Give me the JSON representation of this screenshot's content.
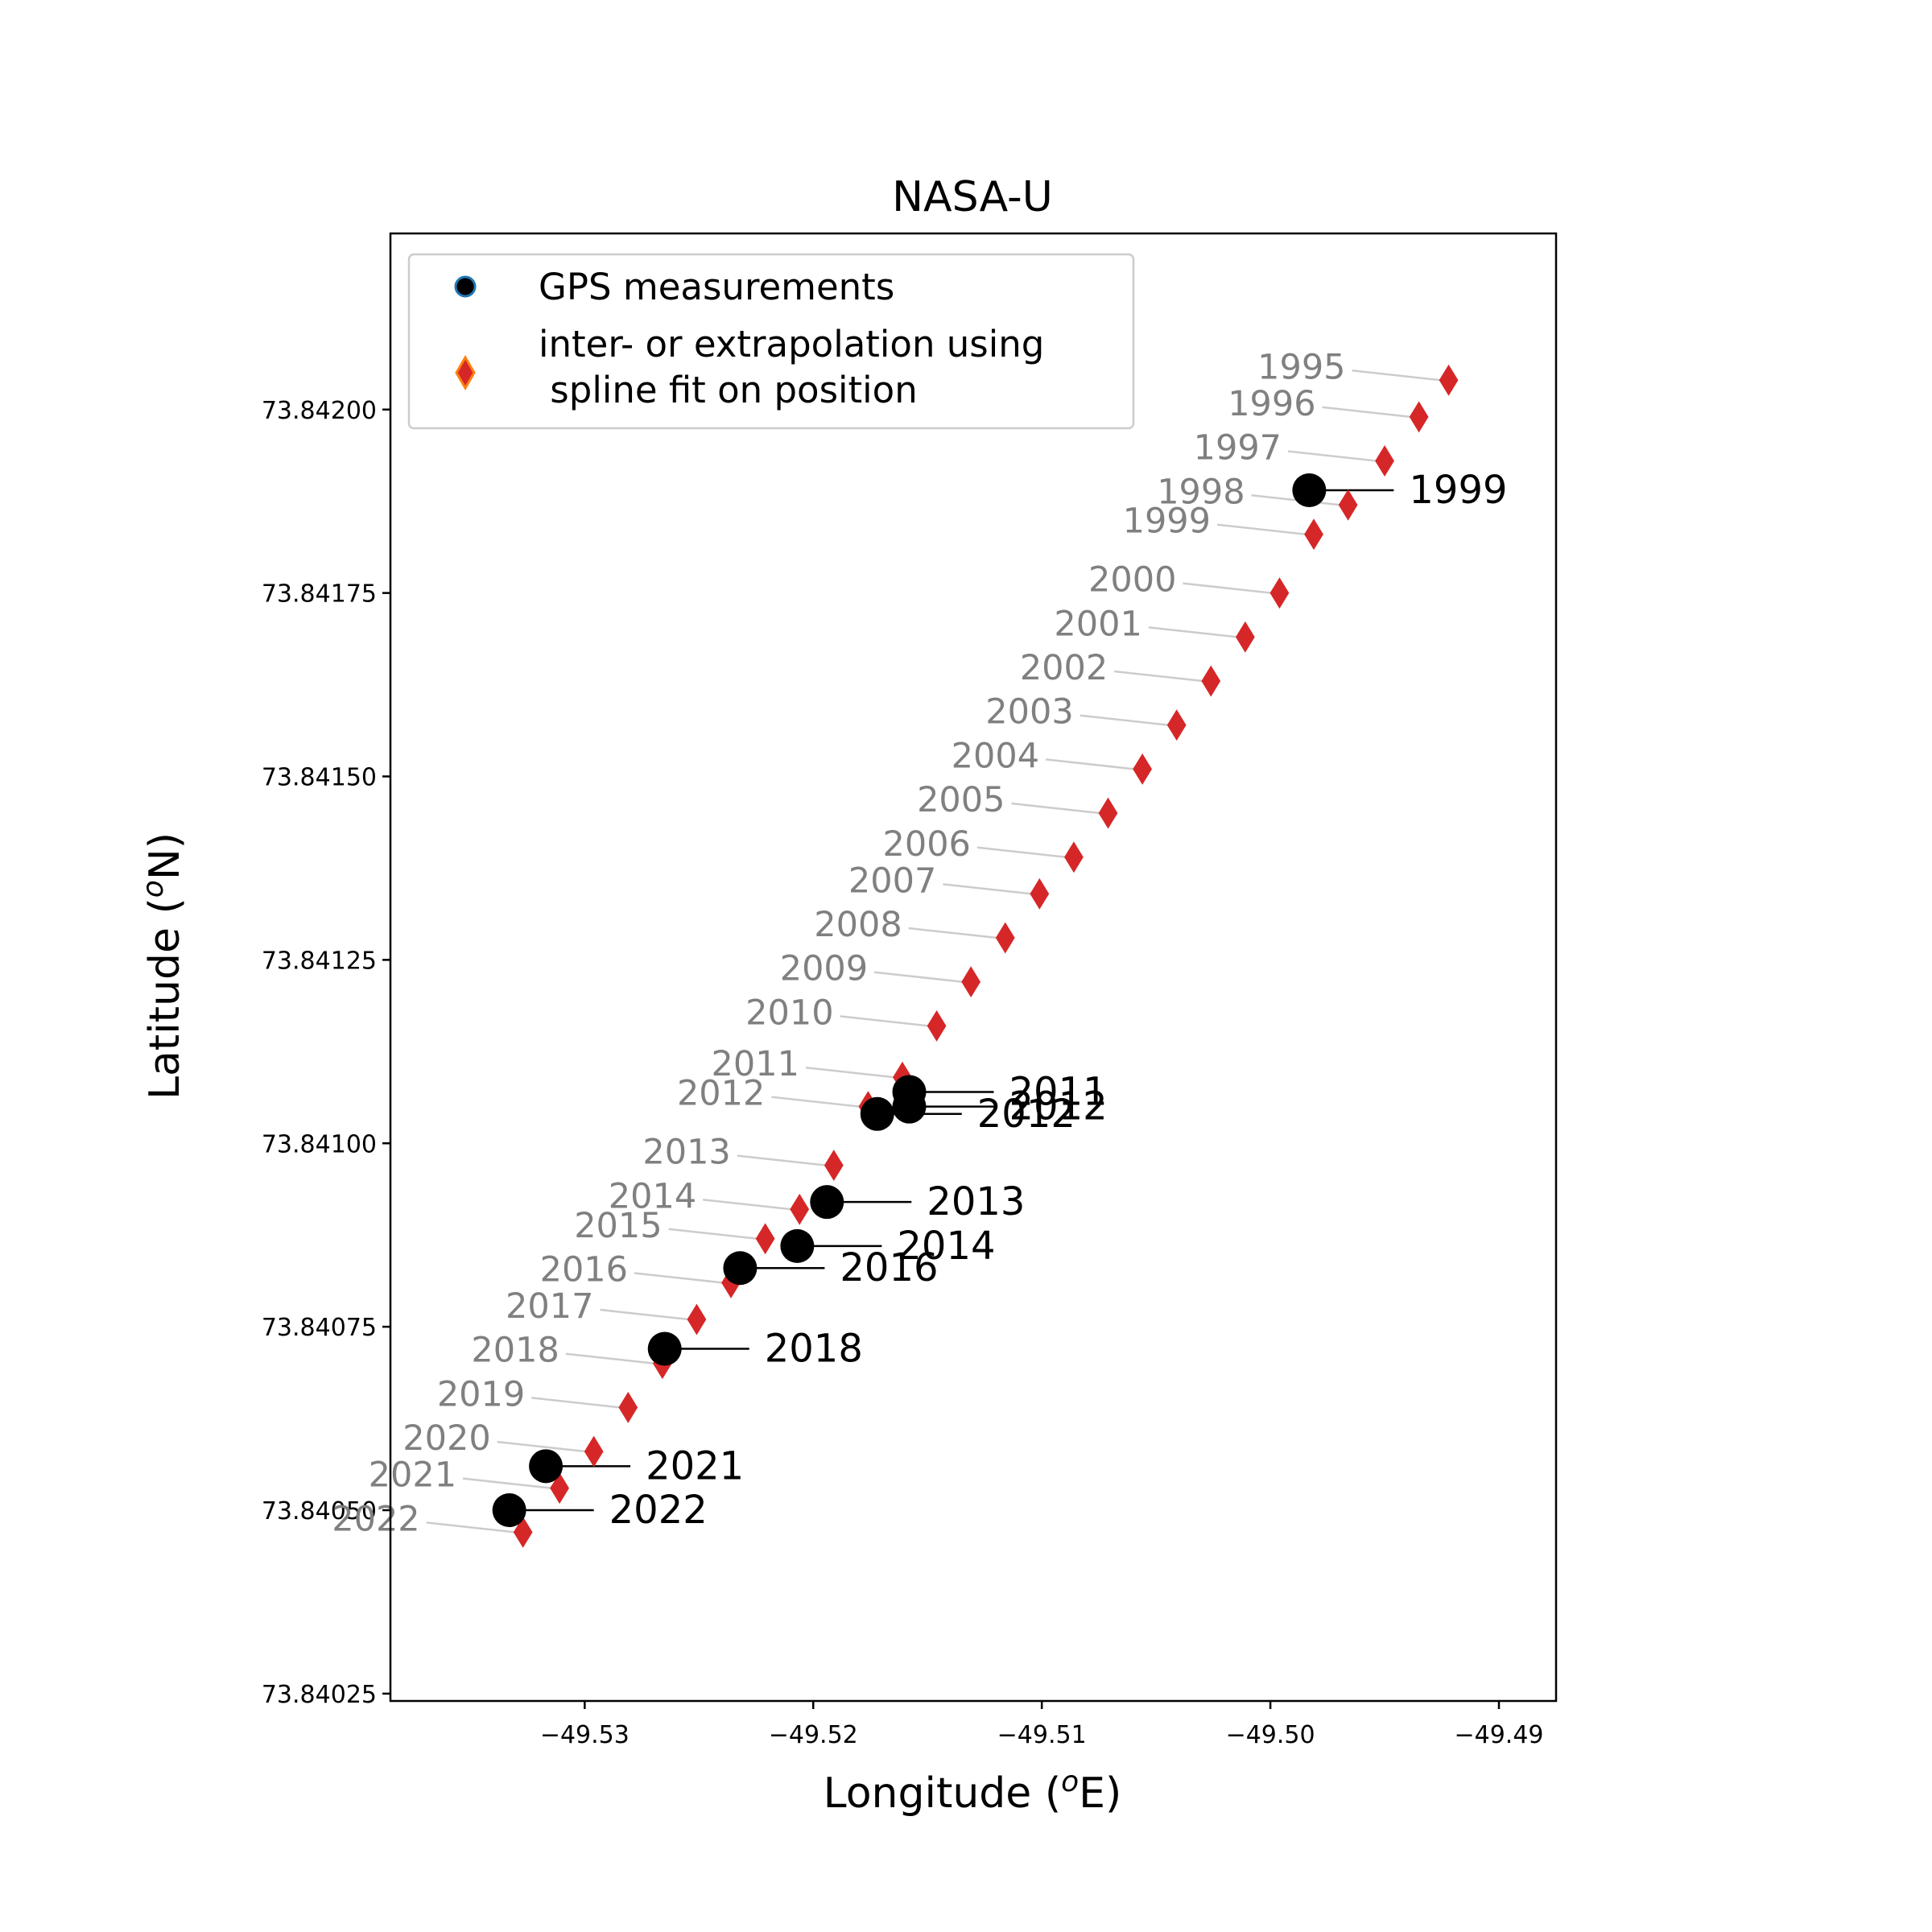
{
  "chart_data": {
    "type": "scatter",
    "title": "NASA-U",
    "xlabel": "Longitude (",
    "xlabel_sup": "o",
    "xlabel_end": "E)",
    "ylabel": "Latitude (",
    "ylabel_sup": "o",
    "ylabel_end": "N)",
    "xlim": [
      -49.5385,
      -49.4875
    ],
    "ylim": [
      73.84024,
      73.84224
    ],
    "x_ticks": [
      -49.53,
      -49.52,
      -49.51,
      -49.5,
      -49.49
    ],
    "x_tick_labels": [
      "−49.53",
      "−49.52",
      "−49.51",
      "−49.50",
      "−49.49"
    ],
    "y_ticks": [
      73.84025,
      73.8405,
      73.84075,
      73.841,
      73.84125,
      73.8415,
      73.84175,
      73.842
    ],
    "y_tick_labels": [
      "73.84025",
      "73.84050",
      "73.84075",
      "73.84100",
      "73.84125",
      "73.84150",
      "73.84175",
      "73.84200"
    ],
    "legend": {
      "placement": "top-left",
      "entries": [
        {
          "label": "GPS measurements",
          "marker": "circle"
        },
        {
          "label": "inter- or extrapolation using",
          "label2": " spline fit on position",
          "marker": "diamond"
        }
      ]
    },
    "colors": {
      "gps": "#000000",
      "gps_legend_edge": "#1f77b4",
      "interp": "#d62728",
      "interp_legend_edge": "#ff7f0e",
      "interp_label": "#808080",
      "interp_leader": "#cccccc"
    },
    "series": [
      {
        "name": "GPS measurements",
        "points": [
          {
            "year": "1999",
            "x": -49.4983,
            "y": 73.84189
          },
          {
            "year": "2011",
            "x": -49.5158,
            "y": 73.84107
          },
          {
            "year": "2012",
            "x": -49.5158,
            "y": 73.84105
          },
          {
            "year": "2012",
            "x": -49.5172,
            "y": 73.84104
          },
          {
            "year": "2013",
            "x": -49.5194,
            "y": 73.84092
          },
          {
            "year": "2014",
            "x": -49.5207,
            "y": 73.84086
          },
          {
            "year": "2016",
            "x": -49.5232,
            "y": 73.84083
          },
          {
            "year": "2018",
            "x": -49.5265,
            "y": 73.84072
          },
          {
            "year": "2021",
            "x": -49.5317,
            "y": 73.84056
          },
          {
            "year": "2022",
            "x": -49.5333,
            "y": 73.8405
          }
        ]
      },
      {
        "name": "inter- or extrapolation using spline fit on position",
        "points": [
          {
            "year": "1995",
            "x": -49.4922,
            "y": 73.84204
          },
          {
            "year": "1996",
            "x": -49.4935,
            "y": 73.84199
          },
          {
            "year": "1997",
            "x": -49.495,
            "y": 73.84193
          },
          {
            "year": "1998",
            "x": -49.4966,
            "y": 73.84187
          },
          {
            "year": "1999",
            "x": -49.4981,
            "y": 73.84183
          },
          {
            "year": "2000",
            "x": -49.4996,
            "y": 73.84175
          },
          {
            "year": "2001",
            "x": -49.5011,
            "y": 73.84169
          },
          {
            "year": "2002",
            "x": -49.5026,
            "y": 73.84163
          },
          {
            "year": "2003",
            "x": -49.5041,
            "y": 73.84157
          },
          {
            "year": "2004",
            "x": -49.5056,
            "y": 73.84151
          },
          {
            "year": "2005",
            "x": -49.5071,
            "y": 73.84145
          },
          {
            "year": "2006",
            "x": -49.5086,
            "y": 73.84139
          },
          {
            "year": "2007",
            "x": -49.5101,
            "y": 73.84134
          },
          {
            "year": "2008",
            "x": -49.5116,
            "y": 73.84128
          },
          {
            "year": "2009",
            "x": -49.5131,
            "y": 73.84122
          },
          {
            "year": "2010",
            "x": -49.5146,
            "y": 73.84116
          },
          {
            "year": "2011",
            "x": -49.5161,
            "y": 73.84109
          },
          {
            "year": "2012",
            "x": -49.5176,
            "y": 73.84105
          },
          {
            "year": "2013",
            "x": -49.5191,
            "y": 73.84097
          },
          {
            "year": "2014",
            "x": -49.5206,
            "y": 73.84091
          },
          {
            "year": "2015",
            "x": -49.5221,
            "y": 73.84087
          },
          {
            "year": "2016",
            "x": -49.5236,
            "y": 73.84081
          },
          {
            "year": "2017",
            "x": -49.5251,
            "y": 73.84076
          },
          {
            "year": "2018",
            "x": -49.5266,
            "y": 73.8407
          },
          {
            "year": "2019",
            "x": -49.5281,
            "y": 73.84064
          },
          {
            "year": "2020",
            "x": -49.5296,
            "y": 73.84058
          },
          {
            "year": "2021",
            "x": -49.5311,
            "y": 73.84053
          },
          {
            "year": "2022",
            "x": -49.5327,
            "y": 73.84047
          }
        ]
      }
    ]
  }
}
